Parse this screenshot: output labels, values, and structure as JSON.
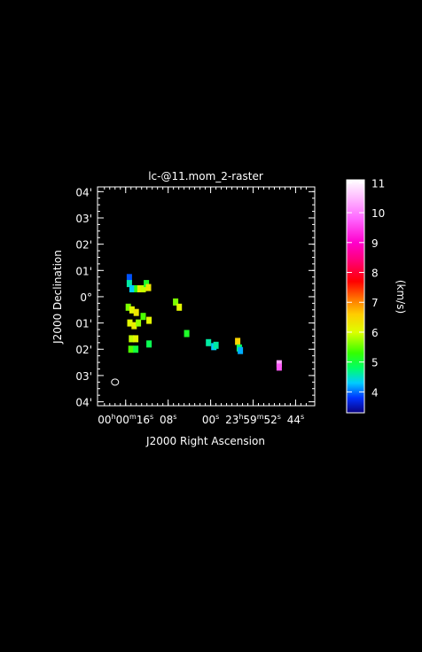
{
  "chart_data": {
    "type": "heatmap",
    "title": "lc-@11.mom_2-raster",
    "xlabel": "J2000 Right Ascension",
    "ylabel": "J2000 Declination",
    "x_ticks": [
      {
        "h": "00",
        "m": "00",
        "s": "16",
        "ra_sec": 16
      },
      {
        "h": "",
        "m": "",
        "s": "08",
        "ra_sec": 8
      },
      {
        "h": "",
        "m": "",
        "s": "00",
        "ra_sec": 0
      },
      {
        "h": "23",
        "m": "59",
        "s": "52",
        "ra_sec": -8
      },
      {
        "h": "",
        "m": "",
        "s": "44",
        "ra_sec": -16
      }
    ],
    "y_ticks": [
      {
        "label": "04'",
        "arcmin": 4
      },
      {
        "label": "03'",
        "arcmin": 3
      },
      {
        "label": "02'",
        "arcmin": 2
      },
      {
        "label": "01'",
        "arcmin": 1
      },
      {
        "label": "0°",
        "arcmin": 0
      },
      {
        "label": "01'",
        "arcmin": -1
      },
      {
        "label": "02'",
        "arcmin": -2
      },
      {
        "label": "03'",
        "arcmin": -3
      },
      {
        "label": "04'",
        "arcmin": -4
      }
    ],
    "xlim": [
      21.3,
      -19.6
    ],
    "ylim": [
      -4.15,
      4.18
    ],
    "grid": false,
    "colorbar": {
      "label": "(km/s)",
      "range": [
        3.3,
        11.1
      ],
      "ticks": [
        4,
        5,
        6,
        7,
        8,
        9,
        10,
        11
      ],
      "stops": [
        {
          "v": 3.3,
          "c": "#0a0080"
        },
        {
          "v": 3.8,
          "c": "#0033ff"
        },
        {
          "v": 4.3,
          "c": "#00ccff"
        },
        {
          "v": 4.8,
          "c": "#00ff66"
        },
        {
          "v": 5.3,
          "c": "#33ff00"
        },
        {
          "v": 6.0,
          "c": "#ddff00"
        },
        {
          "v": 6.6,
          "c": "#ffcc00"
        },
        {
          "v": 7.1,
          "c": "#ff7700"
        },
        {
          "v": 7.7,
          "c": "#ff0000"
        },
        {
          "v": 8.4,
          "c": "#ff0077"
        },
        {
          "v": 9.0,
          "c": "#ff00cc"
        },
        {
          "v": 9.8,
          "c": "#ff66ff"
        },
        {
          "v": 10.5,
          "c": "#ffbbff"
        },
        {
          "v": 11.1,
          "c": "#ffffff"
        }
      ]
    },
    "pixels": [
      {
        "ra": 15.3,
        "dec": 0.73,
        "v": 3.9
      },
      {
        "ra": 15.3,
        "dec": 0.5,
        "v": 4.6
      },
      {
        "ra": 14.8,
        "dec": 0.3,
        "v": 4.3
      },
      {
        "ra": 13.9,
        "dec": 0.3,
        "v": 5.2
      },
      {
        "ra": 13.3,
        "dec": 0.3,
        "v": 6.2
      },
      {
        "ra": 12.7,
        "dec": 0.3,
        "v": 5.9
      },
      {
        "ra": 12.1,
        "dec": 0.5,
        "v": 5.1
      },
      {
        "ra": 11.7,
        "dec": 0.35,
        "v": 6.3
      },
      {
        "ra": 15.5,
        "dec": -0.4,
        "v": 5.6
      },
      {
        "ra": 14.8,
        "dec": -0.5,
        "v": 6.1
      },
      {
        "ra": 14.0,
        "dec": -0.6,
        "v": 6.3
      },
      {
        "ra": 15.2,
        "dec": -1.0,
        "v": 6.1
      },
      {
        "ra": 14.4,
        "dec": -1.1,
        "v": 6.2
      },
      {
        "ra": 13.6,
        "dec": -1.0,
        "v": 5.7
      },
      {
        "ra": 12.7,
        "dec": -0.75,
        "v": 5.4
      },
      {
        "ra": 11.6,
        "dec": -0.9,
        "v": 6.1
      },
      {
        "ra": 14.9,
        "dec": -1.6,
        "v": 5.9
      },
      {
        "ra": 14.1,
        "dec": -1.6,
        "v": 6.1
      },
      {
        "ra": 15.0,
        "dec": -2.0,
        "v": 5.4
      },
      {
        "ra": 14.1,
        "dec": -2.0,
        "v": 5.0
      },
      {
        "ra": 11.6,
        "dec": -1.8,
        "v": 4.9
      },
      {
        "ra": 6.6,
        "dec": -0.2,
        "v": 5.6
      },
      {
        "ra": 5.9,
        "dec": -0.4,
        "v": 6.1
      },
      {
        "ra": 4.5,
        "dec": -1.4,
        "v": 5.1
      },
      {
        "ra": 0.4,
        "dec": -1.75,
        "v": 4.6
      },
      {
        "ra": -0.6,
        "dec": -1.9,
        "v": 4.3
      },
      {
        "ra": -1.0,
        "dec": -1.85,
        "v": 4.6
      },
      {
        "ra": -5.1,
        "dec": -1.7,
        "v": 6.5
      },
      {
        "ra": -5.4,
        "dec": -1.95,
        "v": 4.8
      },
      {
        "ra": -5.6,
        "dec": -2.05,
        "v": 4.2
      },
      {
        "ra": -12.9,
        "dec": -2.55,
        "v": 10.3
      },
      {
        "ra": -12.9,
        "dec": -2.68,
        "v": 9.7
      }
    ],
    "beam": {
      "ra": 18.0,
      "dec": -3.25
    }
  }
}
